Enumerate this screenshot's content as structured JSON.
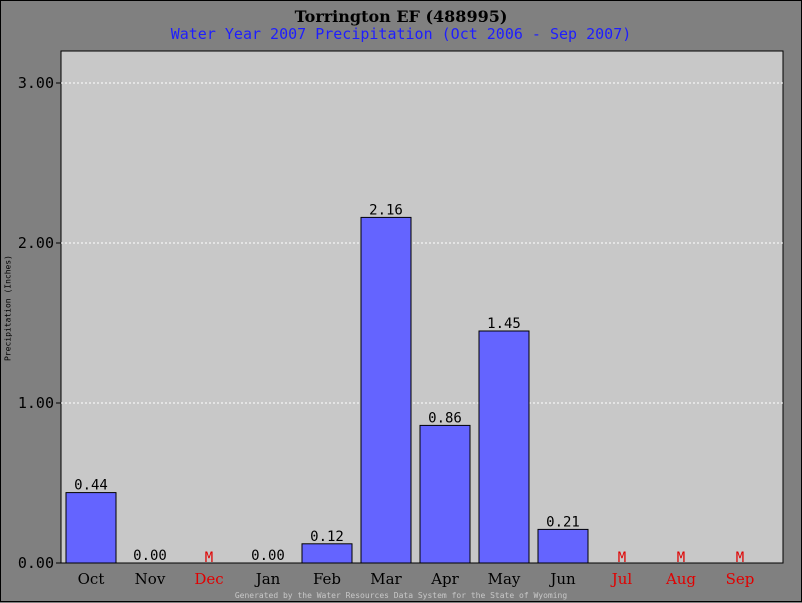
{
  "chart_data": {
    "type": "bar",
    "title": "Torrington EF (488995)",
    "subtitle": "Water Year 2007 Precipitation (Oct 2006 - Sep 2007)",
    "ylabel": "Precipitation (Inches)",
    "xlabel": "",
    "footer": "Generated by the Water Resources Data System for the State of Wyoming",
    "ylim": [
      0,
      3.2
    ],
    "yticks": [
      0.0,
      1.0,
      2.0,
      3.0
    ],
    "ytick_labels": [
      "0.00",
      "1.00",
      "2.00",
      "3.00"
    ],
    "grid": true,
    "categories": [
      "Oct",
      "Nov",
      "Dec",
      "Jan",
      "Feb",
      "Mar",
      "Apr",
      "May",
      "Jun",
      "Jul",
      "Aug",
      "Sep"
    ],
    "values": [
      0.44,
      0.0,
      null,
      0.0,
      0.12,
      2.16,
      0.86,
      1.45,
      0.21,
      null,
      null,
      null
    ],
    "value_labels": [
      "0.44",
      "0.00",
      "M",
      "0.00",
      "0.12",
      "2.16",
      "0.86",
      "1.45",
      "0.21",
      "M",
      "M",
      "M"
    ],
    "missing_marker": "M",
    "colors": {
      "bar": "#6464ff",
      "plot_bg": "#c8c8c8",
      "page_bg": "#808080",
      "subtitle": "#1e1eff",
      "missing": "#e00000",
      "grid": "#ffffff"
    }
  }
}
